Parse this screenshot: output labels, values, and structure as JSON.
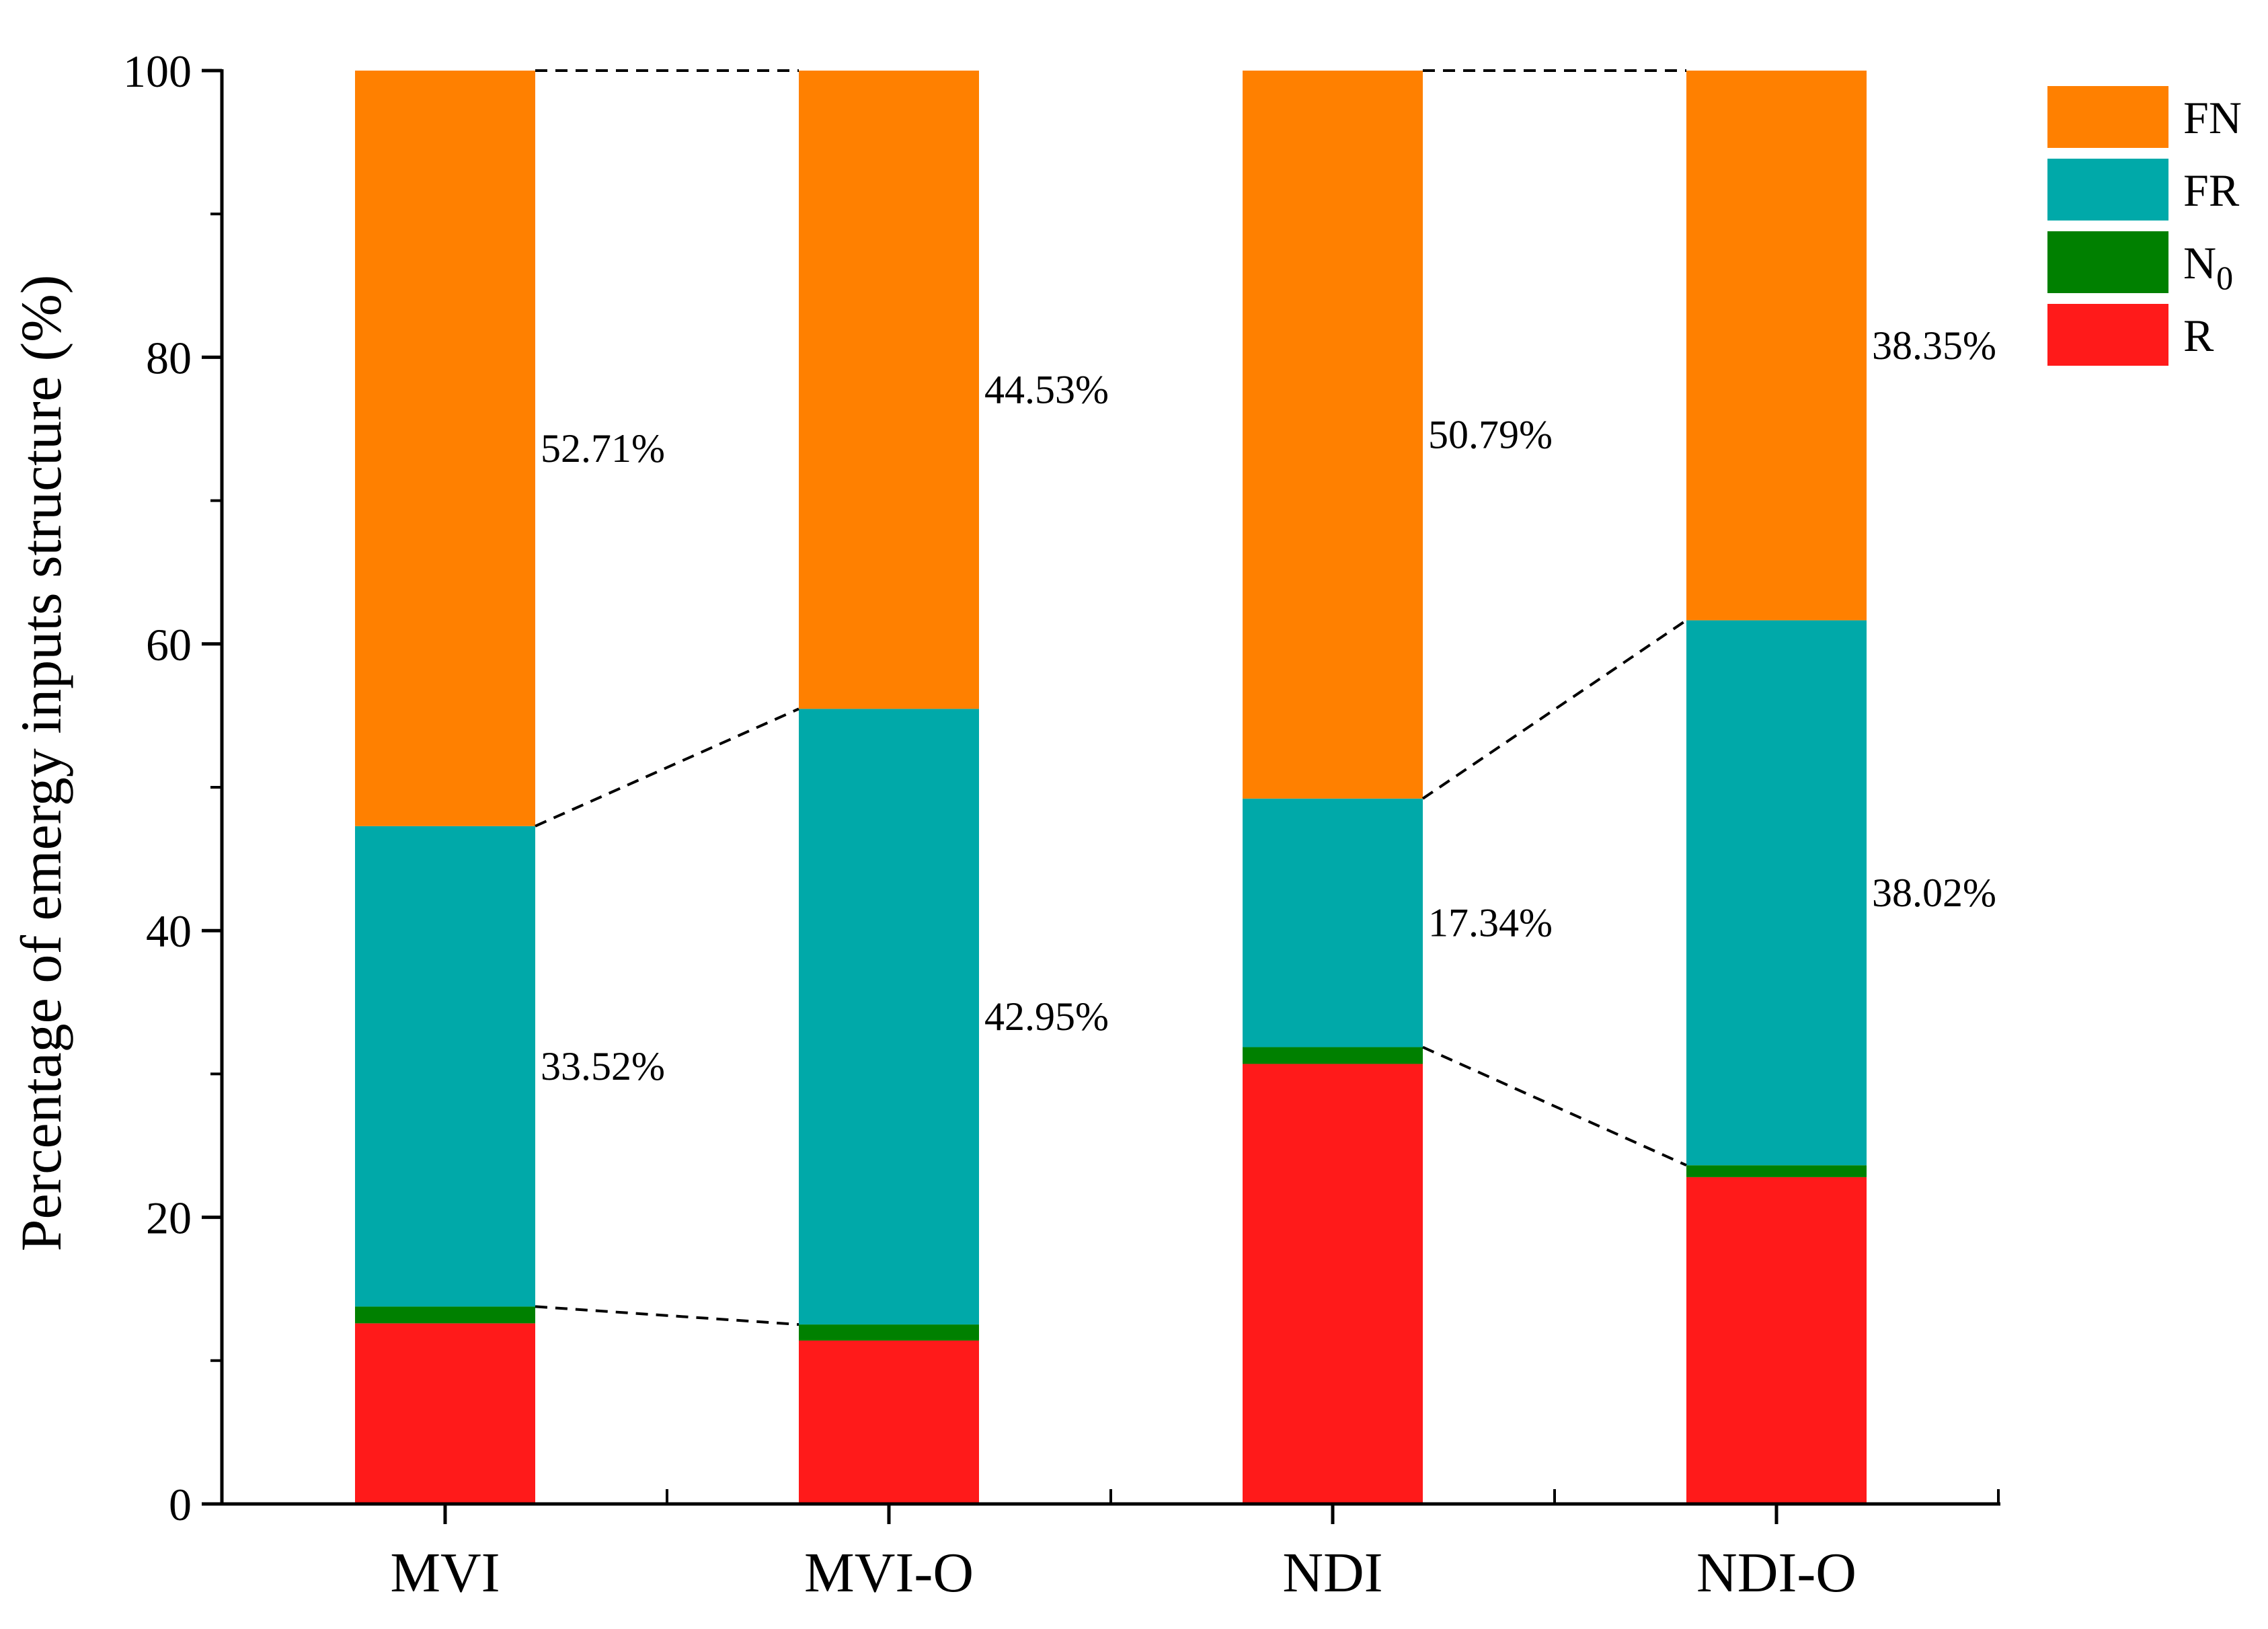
{
  "chart_data": {
    "type": "bar",
    "stacked": true,
    "title": "",
    "xlabel": "",
    "ylabel": "Percentage of emergy inputs structure (%)",
    "ylim": [
      0,
      100
    ],
    "yticks": [
      0,
      20,
      40,
      60,
      80,
      100
    ],
    "categories": [
      "MVI",
      "MVI-O",
      "NDI",
      "NDI-O"
    ],
    "series": [
      {
        "key": "R",
        "name": "R",
        "color": "#ff1a1a",
        "values": [
          12.6,
          11.4,
          30.7,
          22.8
        ]
      },
      {
        "key": "N0",
        "name": "N",
        "name_subscript": "0",
        "color": "#008000",
        "values": [
          1.17,
          1.12,
          1.17,
          0.83
        ]
      },
      {
        "key": "FR",
        "name": "FR",
        "color": "#00a9a9",
        "values": [
          33.52,
          42.95,
          17.34,
          38.02
        ]
      },
      {
        "key": "FN",
        "name": "FN",
        "color": "#ff8000",
        "values": [
          52.71,
          44.53,
          50.79,
          38.35
        ]
      }
    ],
    "legend_order": [
      "FN",
      "FR",
      "N0",
      "R"
    ],
    "legend_position": "top-right",
    "annotations": {
      "FR": [
        "33.52%",
        "42.95%",
        "17.34%",
        "38.02%"
      ],
      "FN": [
        "52.71%",
        "44.53%",
        "50.79%",
        "38.35%"
      ]
    },
    "connector_pairs": [
      [
        0,
        1
      ],
      [
        2,
        3
      ]
    ]
  }
}
